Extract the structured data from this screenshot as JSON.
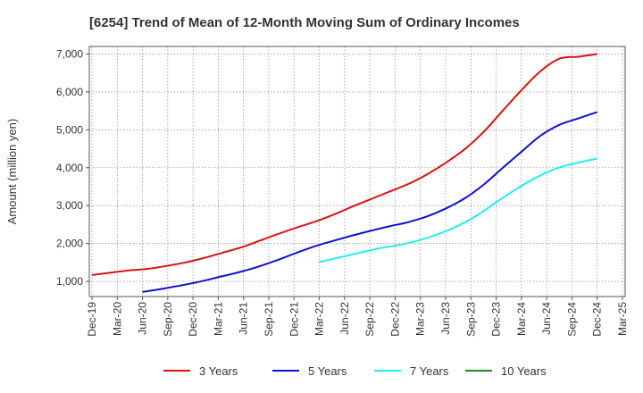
{
  "chart_data": {
    "type": "line",
    "title": "[6254]  Trend of Mean of 12-Month Moving Sum of Ordinary Incomes",
    "xlabel": "",
    "ylabel": "Amount (million yen)",
    "ylim": [
      600,
      7200
    ],
    "yticks": [
      1000,
      2000,
      3000,
      4000,
      5000,
      6000,
      7000
    ],
    "ytick_labels": [
      "1,000",
      "2,000",
      "3,000",
      "4,000",
      "5,000",
      "6,000",
      "7,000"
    ],
    "x_start": "Dec-19",
    "x_months_total": 63,
    "xtick_labels": [
      "Dec-19",
      "Mar-20",
      "Jun-20",
      "Sep-20",
      "Dec-20",
      "Mar-21",
      "Jun-21",
      "Sep-21",
      "Dec-21",
      "Mar-22",
      "Jun-22",
      "Sep-22",
      "Dec-22",
      "Mar-23",
      "Jun-23",
      "Sep-23",
      "Dec-23",
      "Mar-24",
      "Jun-24",
      "Sep-24",
      "Dec-24",
      "Mar-25"
    ],
    "grid": true,
    "legend_position": "bottom",
    "series": [
      {
        "name": "3 Years",
        "color": "#dd1111",
        "start_month": 0,
        "values": [
          1170,
          1230,
          1290,
          1330,
          1410,
          1500,
          1620,
          1760,
          1900,
          2080,
          2260,
          2430,
          2590,
          2780,
          2990,
          3190,
          3390,
          3590,
          3850,
          4160,
          4520,
          4980,
          5530,
          6070,
          6560,
          6880,
          6930,
          7000
        ]
      },
      {
        "name": "5 Years",
        "color": "#1111cc",
        "start_month": 6,
        "values": [
          720,
          800,
          890,
          990,
          1110,
          1230,
          1370,
          1540,
          1730,
          1910,
          2060,
          2200,
          2330,
          2450,
          2560,
          2710,
          2920,
          3190,
          3550,
          3990,
          4420,
          4840,
          5130,
          5300,
          5470
        ]
      },
      {
        "name": "7 Years",
        "color": "#22eeee",
        "start_month": 27,
        "values": [
          1510,
          1630,
          1750,
          1870,
          1960,
          2080,
          2250,
          2470,
          2760,
          3120,
          3460,
          3760,
          3990,
          4130,
          4240
        ]
      },
      {
        "name": "10 Years",
        "color": "#228822",
        "start_month": 0,
        "values": []
      }
    ]
  }
}
